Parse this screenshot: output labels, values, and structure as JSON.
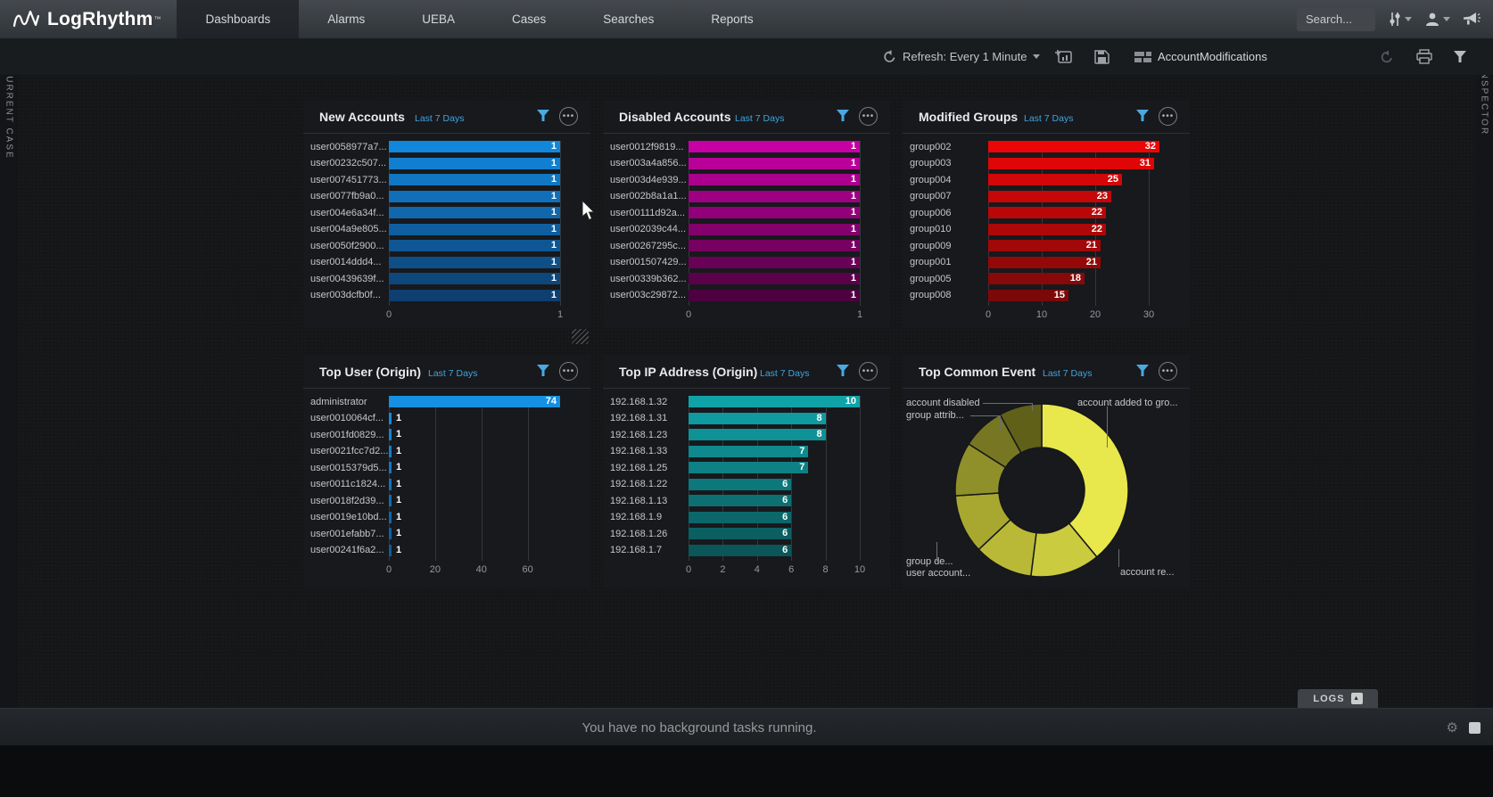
{
  "nav": {
    "logo": "LogRhythm",
    "trademark": "™",
    "tabs": [
      {
        "label": "Dashboards",
        "active": true
      },
      {
        "label": "Alarms",
        "active": false
      },
      {
        "label": "UEBA",
        "active": false
      },
      {
        "label": "Cases",
        "active": false
      },
      {
        "label": "Searches",
        "active": false
      },
      {
        "label": "Reports",
        "active": false
      }
    ],
    "search_label": "Search..."
  },
  "toolbar": {
    "refresh_label": "Refresh: Every 1 Minute",
    "dashboard_name": "AccountModifications"
  },
  "panels": {
    "left_label": "CURRENT CASE",
    "right_label": "INSPECTOR",
    "logs_label": "LOGS"
  },
  "status_bar": {
    "message": "You have no background tasks running."
  },
  "colors": {
    "accent_blue": "#41a4dc",
    "new_accounts_bright": "#1187dc",
    "new_accounts_dark": "#0e3f70",
    "disabled_bright": "#c600a4",
    "disabled_dark": "#4e0140",
    "groups_bright": "#ea0606",
    "groups_dark": "#7c0909",
    "topuser_bright": "#1590e2",
    "topuser_dark": "#0f5a98",
    "topip_bright": "#0fa3a8",
    "topip_dark": "#0b5658"
  },
  "chart_data": [
    {
      "id": "new-accounts",
      "type": "bar",
      "orientation": "horizontal",
      "title": "New Accounts",
      "subtitle": "Last 7 Days",
      "categories": [
        "user0058977a7...",
        "user00232c507...",
        "user007451773...",
        "user0077fb9a0...",
        "user004e6a34f...",
        "user004a9e805...",
        "user0050f2900...",
        "user0014ddd4...",
        "user00439639f...",
        "user003dcfb0f..."
      ],
      "values": [
        1,
        1,
        1,
        1,
        1,
        1,
        1,
        1,
        1,
        1
      ],
      "axis_max": 1,
      "ticks": [
        0,
        1
      ],
      "color_bright": "#1187dc",
      "color_dark": "#0e3f70"
    },
    {
      "id": "disabled-accounts",
      "type": "bar",
      "orientation": "horizontal",
      "title": "Disabled Accounts",
      "subtitle": "Last 7 Days",
      "categories": [
        "user0012f9819...",
        "user003a4a856...",
        "user003d4e939...",
        "user002b8a1a1...",
        "user00111d92a...",
        "user002039c44...",
        "user00267295c...",
        "user001507429...",
        "user00339b362...",
        "user003c29872..."
      ],
      "values": [
        1,
        1,
        1,
        1,
        1,
        1,
        1,
        1,
        1,
        1
      ],
      "axis_max": 1,
      "ticks": [
        0,
        1
      ],
      "color_bright": "#c600a4",
      "color_dark": "#4e0140"
    },
    {
      "id": "modified-groups",
      "type": "bar",
      "orientation": "horizontal",
      "title": "Modified Groups",
      "subtitle": "Last 7 Days",
      "categories": [
        "group002",
        "group003",
        "group004",
        "group007",
        "group006",
        "group010",
        "group009",
        "group001",
        "group005",
        "group008"
      ],
      "values": [
        32,
        31,
        25,
        23,
        22,
        22,
        21,
        21,
        18,
        15
      ],
      "axis_max": 32,
      "ticks": [
        0,
        10,
        20,
        30
      ],
      "color_bright": "#ea0606",
      "color_dark": "#7c0909"
    },
    {
      "id": "top-user-origin",
      "type": "bar",
      "orientation": "horizontal",
      "title": "Top User (Origin)",
      "subtitle": "Last 7 Days",
      "categories": [
        "administrator",
        "user0010064cf...",
        "user001fd0829...",
        "user0021fcc7d2...",
        "user0015379d5...",
        "user0011c1824...",
        "user0018f2d39...",
        "user0019e10bd...",
        "user001efabb7...",
        "user00241f6a2..."
      ],
      "values": [
        74,
        1,
        1,
        1,
        1,
        1,
        1,
        1,
        1,
        1
      ],
      "axis_max": 74,
      "ticks": [
        0,
        20,
        40,
        60
      ],
      "color_bright": "#1590e2",
      "color_dark": "#0f5a98"
    },
    {
      "id": "top-ip-origin",
      "type": "bar",
      "orientation": "horizontal",
      "title": "Top IP Address (Origin)",
      "subtitle": "Last 7 Days",
      "categories": [
        "192.168.1.32",
        "192.168.1.31",
        "192.168.1.23",
        "192.168.1.33",
        "192.168.1.25",
        "192.168.1.22",
        "192.168.1.13",
        "192.168.1.9",
        "192.168.1.26",
        "192.168.1.7"
      ],
      "values": [
        10,
        8,
        8,
        7,
        7,
        6,
        6,
        6,
        6,
        6
      ],
      "axis_max": 10,
      "ticks": [
        0,
        2,
        4,
        6,
        8,
        10
      ],
      "color_bright": "#0fa3a8",
      "color_dark": "#0b5658"
    },
    {
      "id": "top-common-event",
      "type": "donut",
      "title": "Top Common Event",
      "subtitle": "Last 7 Days",
      "slices": [
        {
          "label": "account added to gro...",
          "percent": 39,
          "color": "#e8e84d"
        },
        {
          "label": "account re...",
          "percent": 13,
          "color": "#cbcb3f"
        },
        {
          "label": "user account...",
          "percent": 11,
          "color": "#b9b937"
        },
        {
          "label": "group de...",
          "percent": 11,
          "color": "#a8a831"
        },
        {
          "label": "",
          "percent": 10,
          "color": "#90902a"
        },
        {
          "label": "group attrib...",
          "percent": 8,
          "color": "#777723"
        },
        {
          "label": "account disabled",
          "percent": 8,
          "color": "#606019"
        }
      ],
      "callouts": [
        {
          "text": "account disabled"
        },
        {
          "text": "group attrib..."
        },
        {
          "text": "account added to gro..."
        },
        {
          "text": "group de..."
        },
        {
          "text": "user account..."
        },
        {
          "text": "account re..."
        }
      ]
    }
  ]
}
